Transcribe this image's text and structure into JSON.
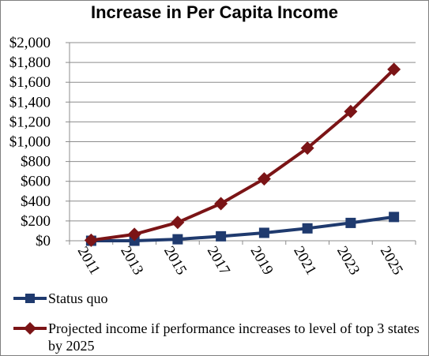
{
  "chart_data": {
    "type": "line",
    "title": "Increase in Per Capita Income",
    "xlabel": "",
    "ylabel": "",
    "categories": [
      "2011",
      "2013",
      "2015",
      "2017",
      "2019",
      "2021",
      "2023",
      "2025"
    ],
    "ylim": [
      0,
      2000
    ],
    "y_ticks": [
      "$0",
      "$200",
      "$400",
      "$600",
      "$800",
      "$1,000",
      "$1,200",
      "$1,400",
      "$1,600",
      "$1,800",
      "$2,000"
    ],
    "grid": true,
    "legend_position": "bottom",
    "series": [
      {
        "name": "Status quo",
        "marker": "square",
        "color": "#1f3a6e",
        "values": [
          0,
          0,
          15,
          45,
          80,
          125,
          180,
          240
        ]
      },
      {
        "name": "Projected income if performance increases to level of top 3 states by 2025",
        "marker": "diamond",
        "color": "#7b1416",
        "values": [
          5,
          65,
          185,
          375,
          625,
          935,
          1305,
          1730
        ]
      }
    ]
  }
}
